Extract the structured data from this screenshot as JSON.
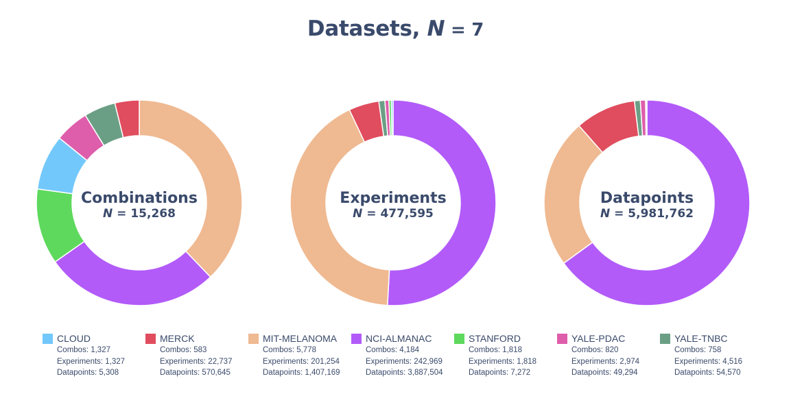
{
  "title": {
    "text": "Datasets,",
    "n_symbol": "N",
    "n_eq": " = 7"
  },
  "chart_data": [
    {
      "type": "pie",
      "center_title": "Combinations",
      "center_n_symbol": "N",
      "center_n_text": " = 15,268",
      "categories": [
        "MIT-MELANOMA",
        "NCI-ALMANAC",
        "STANFORD",
        "CLOUD",
        "YALE-PDAC",
        "YALE-TNBC",
        "MERCK"
      ],
      "values": [
        5778,
        4184,
        1818,
        1327,
        820,
        758,
        583
      ]
    },
    {
      "type": "pie",
      "center_title": "Experiments",
      "center_n_symbol": "N",
      "center_n_text": " = 477,595",
      "categories": [
        "NCI-ALMANAC",
        "MIT-MELANOMA",
        "MERCK",
        "YALE-TNBC",
        "YALE-PDAC",
        "STANFORD",
        "CLOUD"
      ],
      "values": [
        242969,
        201254,
        22737,
        4516,
        2974,
        1818,
        1327
      ]
    },
    {
      "type": "pie",
      "center_title": "Datapoints",
      "center_n_symbol": "N",
      "center_n_text": " = 5,981,762",
      "categories": [
        "NCI-ALMANAC",
        "MIT-MELANOMA",
        "MERCK",
        "YALE-TNBC",
        "YALE-PDAC",
        "STANFORD",
        "CLOUD"
      ],
      "values": [
        3887504,
        1407169,
        570645,
        54570,
        49294,
        7272,
        5308
      ]
    }
  ],
  "colors": {
    "CLOUD": "#73c8fb",
    "MERCK": "#e04d5e",
    "MIT-MELANOMA": "#efb991",
    "NCI-ALMANAC": "#b25bf9",
    "STANFORD": "#5ed95d",
    "YALE-PDAC": "#de5eab",
    "YALE-TNBC": "#6b9f85"
  },
  "legend": [
    {
      "name": "CLOUD",
      "lines": [
        "Combos: 1,327",
        "Experiments: 1,327",
        "Datapoints: 5,308"
      ]
    },
    {
      "name": "MERCK",
      "lines": [
        "Combos: 583",
        "Experiments: 22,737",
        "Datapoints: 570,645"
      ]
    },
    {
      "name": "MIT-MELANOMA",
      "lines": [
        "Combos: 5,778",
        "Experiments: 201,254",
        "Datapoints: 1,407,169"
      ]
    },
    {
      "name": "NCI-ALMANAC",
      "lines": [
        "Combos: 4,184",
        "Experiments: 242,969",
        "Datapoints: 3,887,504"
      ]
    },
    {
      "name": "STANFORD",
      "lines": [
        "Combos: 1,818",
        "Experiments: 1,818",
        "Datapoints: 7,272"
      ]
    },
    {
      "name": "YALE-PDAC",
      "lines": [
        "Combos: 820",
        "Experiments: 2,974",
        "Datapoints: 49,294"
      ]
    },
    {
      "name": "YALE-TNBC",
      "lines": [
        "Combos: 758",
        "Experiments: 4,516",
        "Datapoints: 54,570"
      ]
    }
  ]
}
